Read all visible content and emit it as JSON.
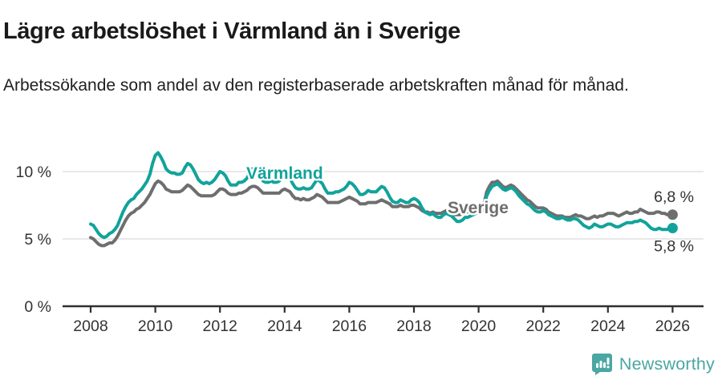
{
  "header": {
    "title": "Lägre arbetslöshet i Värmland än i Sverige",
    "subtitle": "Arbetssökande som andel av den registerbaserade arbetskraften månad för månad."
  },
  "footer": {
    "brand": "Newsworthy",
    "icon": "newsworthy-speech-bubble-bar-chart-icon"
  },
  "colors": {
    "varmland": "#11a39b",
    "sverige": "#6e6e6e",
    "brand_teal": "#4aa7a3",
    "grid": "#d9d9d9",
    "axis": "#2f2f2f",
    "text": "#333333"
  },
  "chart_data": {
    "type": "line",
    "title": "Lägre arbetslöshet i Värmland än i Sverige",
    "x_label": "",
    "y_label": "",
    "x_start_year": 2008,
    "x_step": "monthly",
    "x_end": "2026-01",
    "x_ticks": [
      2008,
      2010,
      2012,
      2014,
      2016,
      2018,
      2020,
      2022,
      2024,
      2026
    ],
    "y_ticks": [
      {
        "label": "0 %",
        "value": 0
      },
      {
        "label": "5 %",
        "value": 5
      },
      {
        "label": "10 %",
        "value": 10
      }
    ],
    "ylim": [
      0,
      11.7
    ],
    "grid": "horizontal-at-5-and-10",
    "legend": "inline-series-labels",
    "series": [
      {
        "name": "Sverige",
        "color": "#6e6e6e",
        "end_label": "6,8 %",
        "end_value": 6.8,
        "values": [
          5.1,
          5.0,
          4.8,
          4.6,
          4.5,
          4.5,
          4.6,
          4.7,
          4.7,
          4.9,
          5.2,
          5.6,
          6.0,
          6.4,
          6.7,
          6.9,
          7.0,
          7.2,
          7.3,
          7.5,
          7.7,
          8.0,
          8.3,
          8.7,
          9.1,
          9.3,
          9.2,
          9.0,
          8.7,
          8.6,
          8.5,
          8.5,
          8.5,
          8.5,
          8.6,
          8.8,
          9.0,
          8.9,
          8.7,
          8.5,
          8.3,
          8.2,
          8.2,
          8.2,
          8.2,
          8.2,
          8.3,
          8.5,
          8.7,
          8.7,
          8.6,
          8.4,
          8.3,
          8.3,
          8.3,
          8.4,
          8.4,
          8.5,
          8.6,
          8.8,
          8.9,
          8.9,
          8.8,
          8.6,
          8.4,
          8.4,
          8.4,
          8.4,
          8.4,
          8.4,
          8.4,
          8.6,
          8.7,
          8.6,
          8.5,
          8.2,
          8.0,
          8.0,
          7.9,
          8.0,
          7.9,
          7.9,
          8.0,
          8.1,
          8.3,
          8.2,
          8.1,
          7.9,
          7.7,
          7.7,
          7.7,
          7.7,
          7.7,
          7.8,
          7.9,
          8.0,
          8.1,
          8.0,
          7.9,
          7.8,
          7.6,
          7.6,
          7.6,
          7.7,
          7.7,
          7.7,
          7.7,
          7.8,
          7.9,
          7.8,
          7.7,
          7.6,
          7.4,
          7.4,
          7.4,
          7.5,
          7.4,
          7.4,
          7.4,
          7.5,
          7.5,
          7.4,
          7.3,
          7.1,
          7.0,
          7.0,
          6.9,
          7.0,
          6.9,
          6.9,
          6.9,
          7.0,
          7.1,
          7.0,
          6.9,
          6.8,
          6.8,
          6.8,
          6.9,
          7.0,
          7.0,
          7.1,
          7.1,
          7.2,
          7.3,
          7.3,
          7.6,
          8.5,
          8.9,
          9.2,
          9.2,
          9.3,
          9.1,
          8.9,
          8.8,
          8.9,
          9.0,
          8.9,
          8.7,
          8.5,
          8.3,
          8.1,
          7.9,
          7.8,
          7.6,
          7.4,
          7.3,
          7.3,
          7.3,
          7.2,
          7.0,
          6.9,
          6.8,
          6.7,
          6.7,
          6.7,
          6.6,
          6.6,
          6.6,
          6.7,
          6.8,
          6.7,
          6.7,
          6.6,
          6.5,
          6.5,
          6.6,
          6.7,
          6.6,
          6.7,
          6.7,
          6.8,
          6.9,
          6.9,
          6.9,
          6.8,
          6.7,
          6.8,
          6.9,
          7.0,
          6.9,
          6.9,
          7.0,
          7.0,
          7.2,
          7.1,
          7.0,
          6.9,
          6.9,
          6.9,
          7.0,
          7.0,
          6.9,
          6.9,
          6.8,
          6.8,
          6.8
        ]
      },
      {
        "name": "Värmland",
        "color": "#11a39b",
        "end_label": "5,8 %",
        "end_value": 5.8,
        "values": [
          6.1,
          6.0,
          5.7,
          5.4,
          5.2,
          5.1,
          5.2,
          5.4,
          5.5,
          5.7,
          6.0,
          6.5,
          7.0,
          7.4,
          7.7,
          7.9,
          8.0,
          8.3,
          8.5,
          8.7,
          9.0,
          9.3,
          9.8,
          10.6,
          11.2,
          11.4,
          11.1,
          10.7,
          10.2,
          10.0,
          9.9,
          9.9,
          9.8,
          9.8,
          9.9,
          10.3,
          10.6,
          10.5,
          10.2,
          9.8,
          9.4,
          9.2,
          9.1,
          9.2,
          9.1,
          9.2,
          9.4,
          9.7,
          10.0,
          9.9,
          9.7,
          9.3,
          9.0,
          9.0,
          9.0,
          9.2,
          9.2,
          9.3,
          9.5,
          9.9,
          10.2,
          10.1,
          9.9,
          9.6,
          9.3,
          9.2,
          9.2,
          9.3,
          9.2,
          9.2,
          9.3,
          9.6,
          9.9,
          9.8,
          9.5,
          9.1,
          8.8,
          8.7,
          8.7,
          8.8,
          8.7,
          8.7,
          8.8,
          9.1,
          9.4,
          9.3,
          9.1,
          8.7,
          8.4,
          8.4,
          8.4,
          8.5,
          8.5,
          8.6,
          8.7,
          8.9,
          9.2,
          9.1,
          8.9,
          8.6,
          8.3,
          8.3,
          8.4,
          8.6,
          8.5,
          8.5,
          8.5,
          8.7,
          8.9,
          8.8,
          8.5,
          8.1,
          7.8,
          7.7,
          7.7,
          7.9,
          7.8,
          7.7,
          7.7,
          7.9,
          8.0,
          7.9,
          7.7,
          7.3,
          7.0,
          6.9,
          6.8,
          6.9,
          6.7,
          6.6,
          6.6,
          6.8,
          6.9,
          6.8,
          6.7,
          6.5,
          6.3,
          6.3,
          6.4,
          6.6,
          6.6,
          6.7,
          6.8,
          6.9,
          7.0,
          7.0,
          7.3,
          8.2,
          8.6,
          8.9,
          9.0,
          9.1,
          8.9,
          8.7,
          8.6,
          8.7,
          8.8,
          8.7,
          8.5,
          8.2,
          8.0,
          7.8,
          7.6,
          7.5,
          7.3,
          7.1,
          7.0,
          7.0,
          7.1,
          7.0,
          6.8,
          6.7,
          6.6,
          6.5,
          6.5,
          6.6,
          6.5,
          6.4,
          6.4,
          6.5,
          6.5,
          6.4,
          6.2,
          6.0,
          5.9,
          5.8,
          5.9,
          6.1,
          6.0,
          5.9,
          5.9,
          6.0,
          6.1,
          6.1,
          6.0,
          5.9,
          5.9,
          6.0,
          6.1,
          6.2,
          6.2,
          6.2,
          6.3,
          6.3,
          6.4,
          6.3,
          6.2,
          6.0,
          5.8,
          5.7,
          5.7,
          5.8,
          5.7,
          5.7,
          5.7,
          5.8,
          5.8
        ]
      }
    ]
  }
}
